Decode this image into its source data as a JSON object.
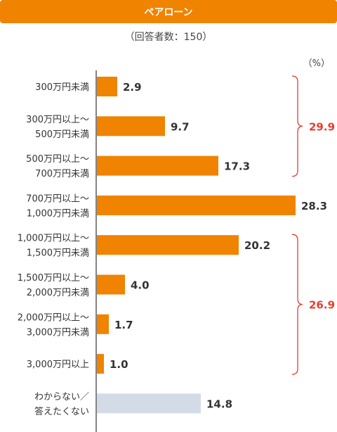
{
  "header": {
    "title": "ペアローン",
    "subtitle": "（回答者数：150）",
    "unit": "（%）"
  },
  "colors": {
    "accent": "#F08300",
    "bar": "#F08300",
    "bar_muted": "#D3DCE6",
    "bracket": "#E83C2D",
    "axis": "#333333"
  },
  "chart_data": {
    "type": "bar",
    "orientation": "horizontal",
    "categories": [
      [
        "300万円未満"
      ],
      [
        "300万円以上～",
        "500万円未満"
      ],
      [
        "500万円以上～",
        "700万円未満"
      ],
      [
        "700万円以上～",
        "1,000万円未満"
      ],
      [
        "1,000万円以上～",
        "1,500万円未満"
      ],
      [
        "1,500万円以上～",
        "2,000万円未満"
      ],
      [
        "2,000万円以上～",
        "3,000万円未満"
      ],
      [
        "3,000万円以上"
      ],
      [
        "わからない／",
        "答えたくない"
      ]
    ],
    "values": [
      2.9,
      9.7,
      17.3,
      28.3,
      20.2,
      4.0,
      1.7,
      1.0,
      14.8
    ],
    "value_labels": [
      "2.9",
      "9.7",
      "17.3",
      "28.3",
      "20.2",
      "4.0",
      "1.7",
      "1.0",
      "14.8"
    ],
    "muted_indices": [
      8
    ],
    "groups": [
      {
        "label": "29.9",
        "from": 0,
        "to": 2
      },
      {
        "label": "26.9",
        "from": 4,
        "to": 7
      }
    ],
    "xlim": [
      0,
      30
    ]
  }
}
